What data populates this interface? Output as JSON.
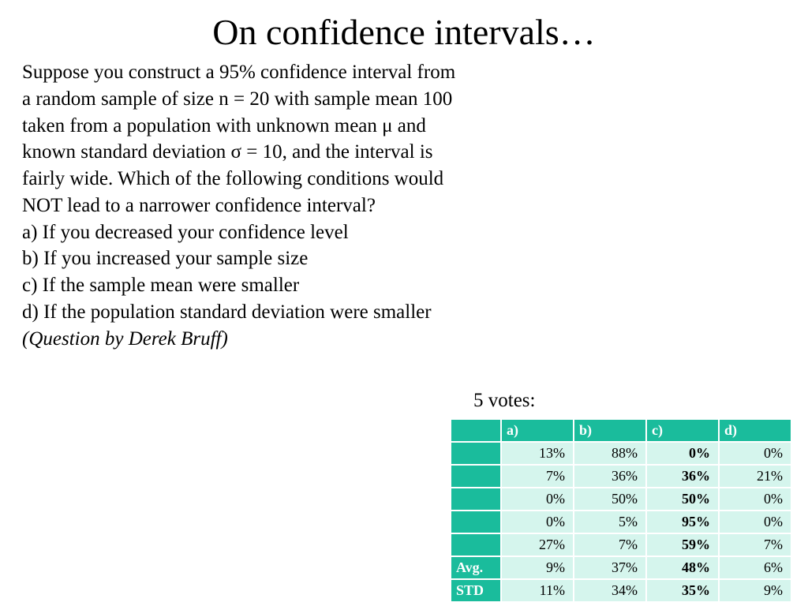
{
  "title": "On confidence intervals…",
  "paragraph": [
    "Suppose you construct a 95% confidence interval from",
    "a random sample of size n = 20 with sample mean 100",
    "taken from a population with unknown mean μ and",
    "known standard deviation σ = 10, and the interval is",
    "fairly wide. Which of the following conditions would",
    "NOT lead to a narrower confidence interval?"
  ],
  "options": [
    "a) If you decreased your confidence level",
    "b) If you increased your sample size",
    "c) If the sample mean were smaller",
    "d) If the population standard deviation were smaller"
  ],
  "attribution": "(Question by Derek Bruff)",
  "votes_label": "5 votes:",
  "table": {
    "columns": [
      "a)",
      "b)",
      "c)",
      "d)"
    ],
    "bold_column_index": 2,
    "rows": [
      {
        "label": "",
        "cells": [
          "13%",
          "88%",
          "0%",
          "0%"
        ]
      },
      {
        "label": "",
        "cells": [
          "7%",
          "36%",
          "36%",
          "21%"
        ]
      },
      {
        "label": "",
        "cells": [
          "0%",
          "50%",
          "50%",
          "0%"
        ]
      },
      {
        "label": "",
        "cells": [
          "0%",
          "5%",
          "95%",
          "0%"
        ]
      },
      {
        "label": "",
        "cells": [
          "27%",
          "7%",
          "59%",
          "7%"
        ]
      },
      {
        "label": "Avg.",
        "cells": [
          "9%",
          "37%",
          "48%",
          "6%"
        ]
      },
      {
        "label": "STD",
        "cells": [
          "11%",
          "34%",
          "35%",
          "9%"
        ]
      }
    ],
    "header_bg": "#1abc9c",
    "header_fg": "#ffffff",
    "cell_bg": "#d5f5ed",
    "cell_fg": "#000000"
  }
}
